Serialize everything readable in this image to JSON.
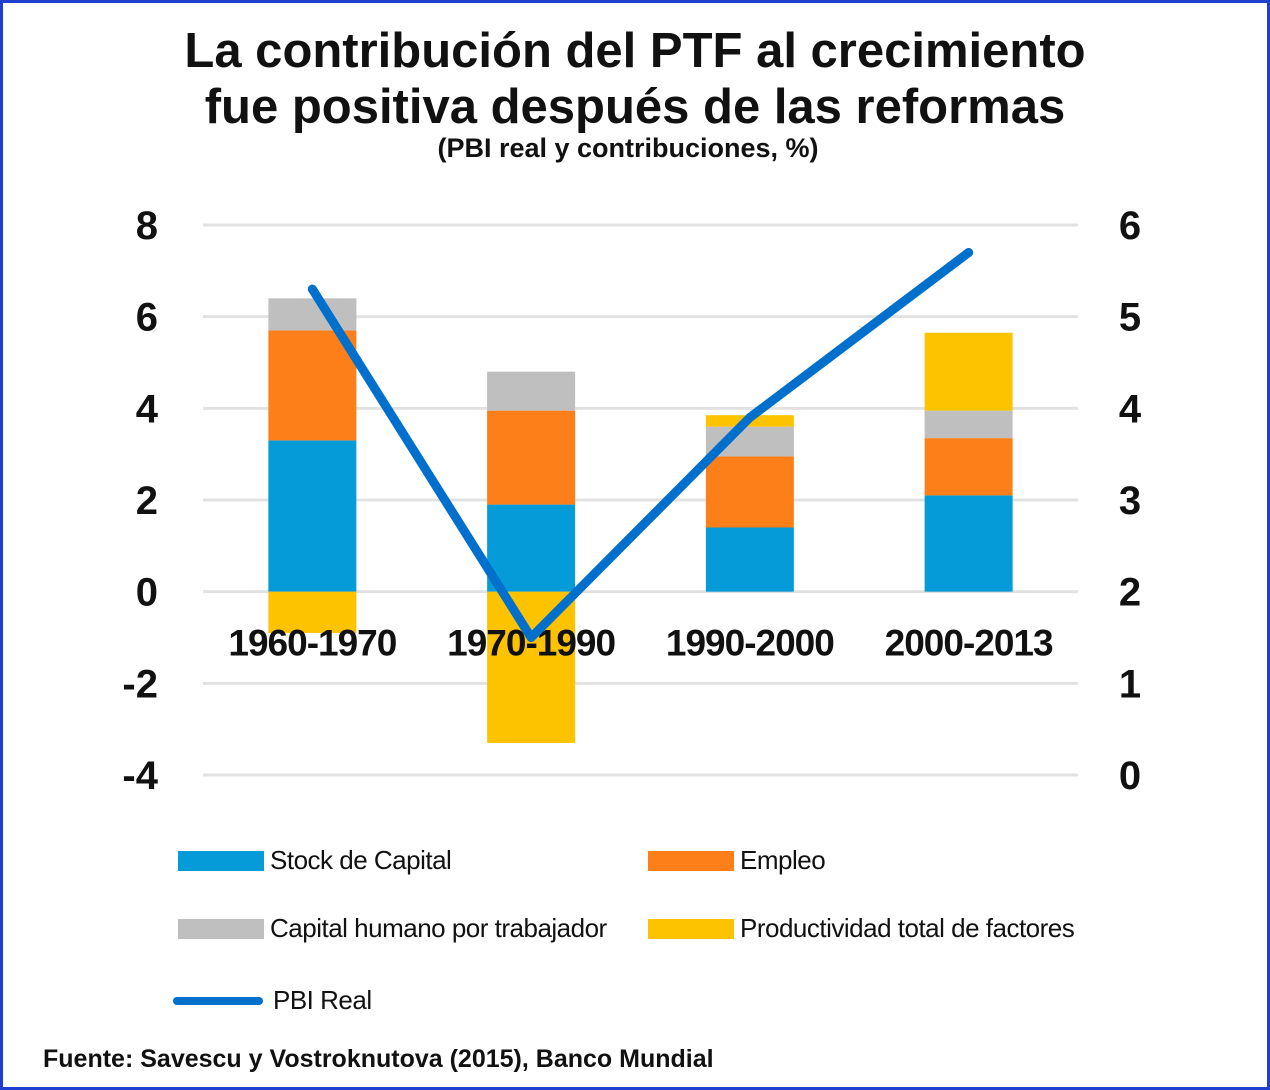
{
  "title": {
    "line1": "La contribución del PTF al crecimiento",
    "line2": "fue positiva después de las reformas"
  },
  "subtitle": "(PBI real y contribuciones, %)",
  "source": {
    "label": "Fuente:",
    "text": "Savescu y Vostroknutova (2015), Banco Mundial"
  },
  "legend": {
    "stock": "Stock de Capital",
    "empleo": "Empleo",
    "capital_humano": "Capital humano por trabajador",
    "ptf": "Productividad total de factores",
    "pbi": "PBI Real"
  },
  "colors": {
    "stock": "#059bd8",
    "empleo": "#fd7f1a",
    "capital_humano": "#bfbfbf",
    "ptf": "#fdc200",
    "pbi": "#0070cc",
    "grid": "#e2e2e2"
  },
  "chart_data": {
    "type": "bar",
    "stacked": true,
    "categories": [
      "1960-1970",
      "1970-1990",
      "1990-2000",
      "2000-2013"
    ],
    "series": [
      {
        "name": "Stock de Capital",
        "key": "stock",
        "values": [
          3.3,
          1.9,
          1.4,
          2.1
        ]
      },
      {
        "name": "Empleo",
        "key": "empleo",
        "values": [
          2.4,
          2.05,
          1.55,
          1.25
        ]
      },
      {
        "name": "Capital humano por trabajador",
        "key": "capital_humano",
        "values": [
          0.7,
          0.85,
          0.65,
          0.6
        ]
      },
      {
        "name": "Productividad total de factores",
        "key": "ptf",
        "values": [
          -0.9,
          -3.3,
          0.25,
          1.7
        ]
      }
    ],
    "line_series": {
      "name": "PBI Real",
      "key": "pbi",
      "axis": "right",
      "values": [
        5.3,
        1.5,
        3.9,
        5.7
      ]
    },
    "ylim_left": [
      -4,
      8
    ],
    "yticks_left": [
      8,
      6,
      4,
      2,
      0,
      -2,
      -4
    ],
    "ylim_right": [
      0,
      6
    ],
    "yticks_right": [
      6,
      5,
      4,
      3,
      2,
      1,
      0
    ],
    "grid": true,
    "legend_position": "bottom"
  }
}
